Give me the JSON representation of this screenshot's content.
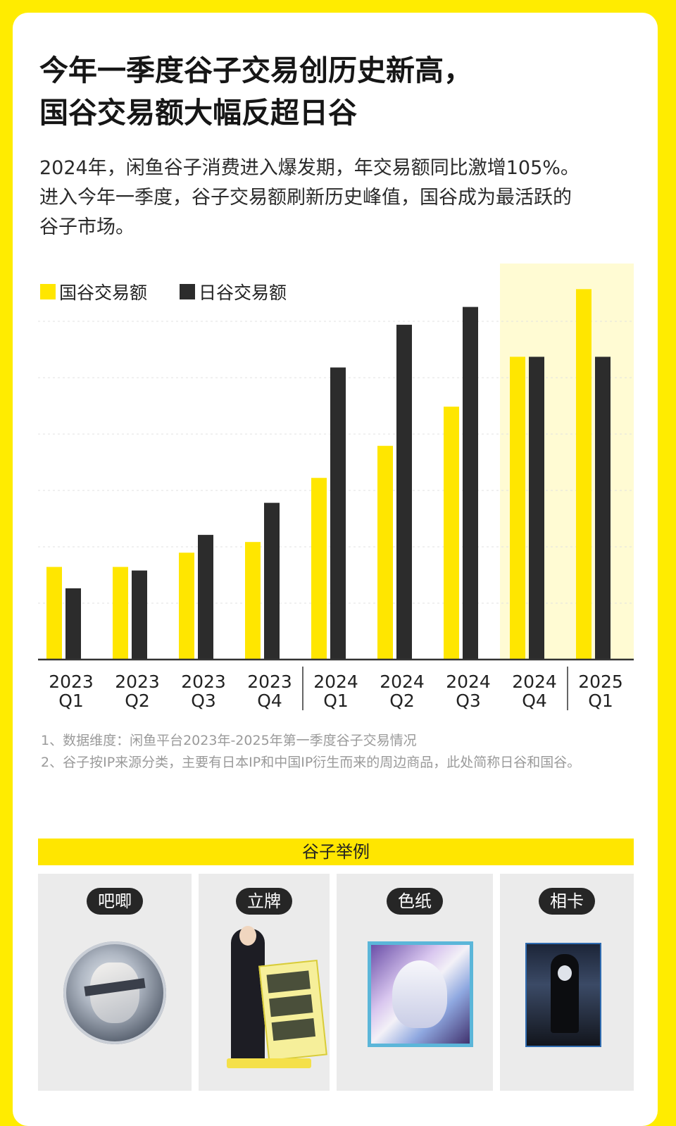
{
  "title": {
    "line1": "今年一季度谷子交易创历史新高，",
    "line2": "国谷交易额大幅反超日谷"
  },
  "intro": {
    "line1": "2024年，闲鱼谷子消费进入爆发期，年交易额同比激增105%。",
    "line2": "进入今年一季度，谷子交易额刷新历史峰值，国谷成为最活跃的",
    "line3": "谷子市场。"
  },
  "colors": {
    "guogu": "#ffe600",
    "rigu": "#2c2c2c",
    "highlight": "#fffbd3",
    "page_border": "#ffec00"
  },
  "chart_data": {
    "type": "bar",
    "categories": [
      {
        "year": "2023",
        "quarter": "Q1"
      },
      {
        "year": "2023",
        "quarter": "Q2"
      },
      {
        "year": "2023",
        "quarter": "Q3"
      },
      {
        "year": "2023",
        "quarter": "Q4"
      },
      {
        "year": "2024",
        "quarter": "Q1"
      },
      {
        "year": "2024",
        "quarter": "Q2"
      },
      {
        "year": "2024",
        "quarter": "Q3"
      },
      {
        "year": "2024",
        "quarter": "Q4"
      },
      {
        "year": "2025",
        "quarter": "Q1"
      }
    ],
    "series": [
      {
        "name": "国谷交易额",
        "color": "#ffe600",
        "values": [
          26,
          26,
          30,
          33,
          51,
          60,
          71,
          85,
          104
        ]
      },
      {
        "name": "日谷交易额",
        "color": "#2c2c2c",
        "values": [
          20,
          25,
          35,
          44,
          82,
          94,
          99,
          85,
          85
        ]
      }
    ],
    "ylim": [
      0,
      110
    ],
    "y_axis_labels_shown": false,
    "grid": "horizontal dotted",
    "legend_position": "top-left",
    "highlighted_categories": [
      7,
      8
    ],
    "year_separators_after": [
      3,
      7
    ]
  },
  "notes": [
    "1、数据维度：闲鱼平台2023年-2025年第一季度谷子交易情况",
    "2、谷子按IP来源分类，主要有日本IP和中国IP衍生而来的周边商品，此处简称日谷和国谷。"
  ],
  "examples": {
    "title": "谷子举例",
    "items": [
      {
        "label": "吧唧",
        "icon": "round-badge-icon"
      },
      {
        "label": "立牌",
        "icon": "acrylic-stand-icon"
      },
      {
        "label": "色纸",
        "icon": "shikishi-art-icon"
      },
      {
        "label": "相卡",
        "icon": "photo-card-icon"
      }
    ]
  }
}
